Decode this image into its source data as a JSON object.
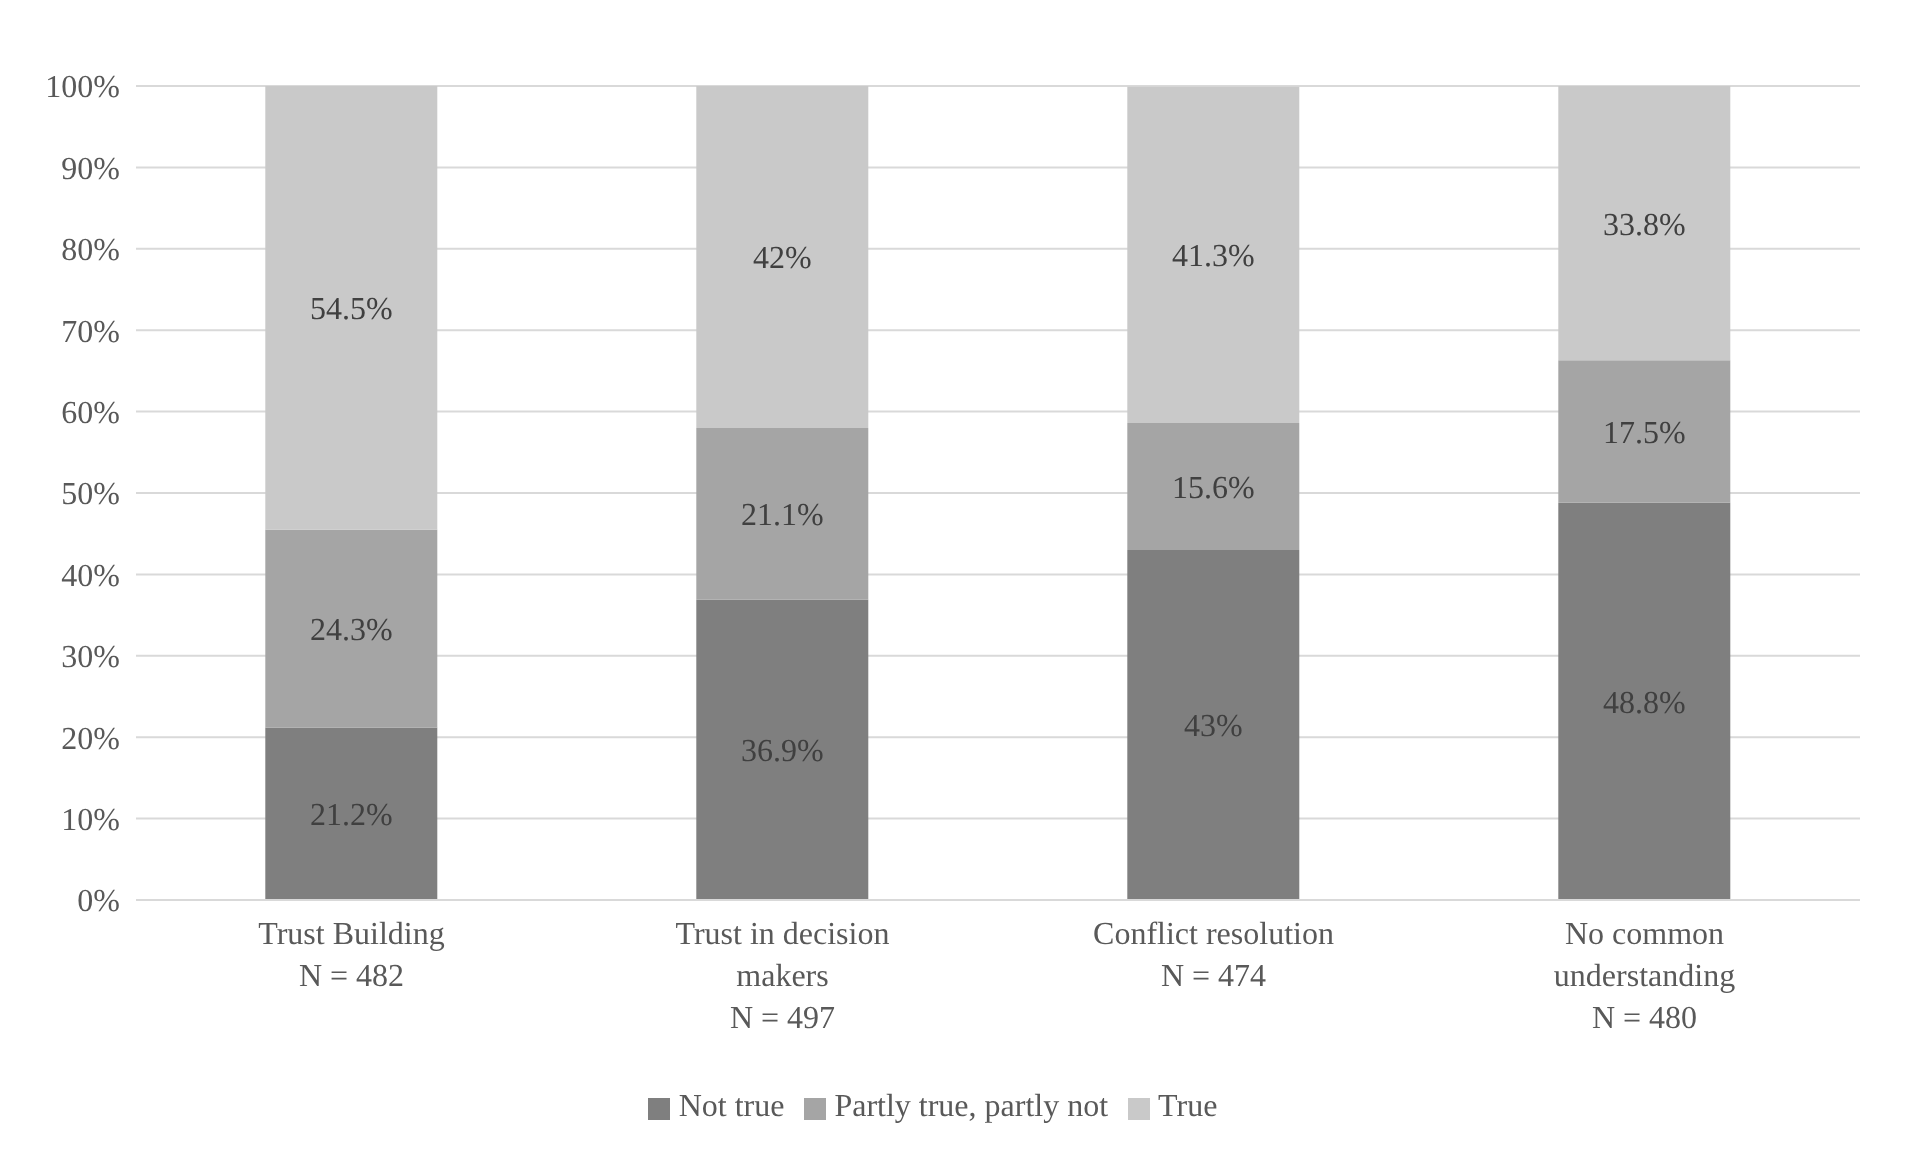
{
  "chart_data": {
    "type": "bar",
    "stacked": true,
    "categories": [
      "Trust Building\nN = 482",
      "Trust in decision makers\nN = 497",
      "Conflict resolution\nN = 474",
      "No common understanding\nN = 480"
    ],
    "series": [
      {
        "name": "Not true",
        "color": "#7f7f7f",
        "values": [
          21.2,
          36.9,
          43,
          48.8
        ],
        "value_labels": [
          "21.2%",
          "36.9%",
          "43%",
          "48.8%"
        ]
      },
      {
        "name": "Partly true, partly not",
        "color": "#a5a5a5",
        "values": [
          24.3,
          21.1,
          15.6,
          17.5
        ],
        "value_labels": [
          "24.3%",
          "21.1%",
          "15.6%",
          "17.5%"
        ]
      },
      {
        "name": "True",
        "color": "#c9c9c9",
        "values": [
          54.5,
          42,
          41.3,
          33.8
        ],
        "value_labels": [
          "54.5%",
          "42%",
          "41.3%",
          "33.8%"
        ]
      }
    ],
    "ylim": [
      0,
      100
    ],
    "yticks": [
      {
        "value": 0,
        "label": "0%"
      },
      {
        "value": 10,
        "label": "10%"
      },
      {
        "value": 20,
        "label": "20%"
      },
      {
        "value": 30,
        "label": "30%"
      },
      {
        "value": 40,
        "label": "40%"
      },
      {
        "value": 50,
        "label": "50%"
      },
      {
        "value": 60,
        "label": "60%"
      },
      {
        "value": 70,
        "label": "70%"
      },
      {
        "value": 80,
        "label": "80%"
      },
      {
        "value": 90,
        "label": "90%"
      },
      {
        "value": 100,
        "label": "100%"
      }
    ],
    "grid": "y",
    "legend": "bottom"
  }
}
